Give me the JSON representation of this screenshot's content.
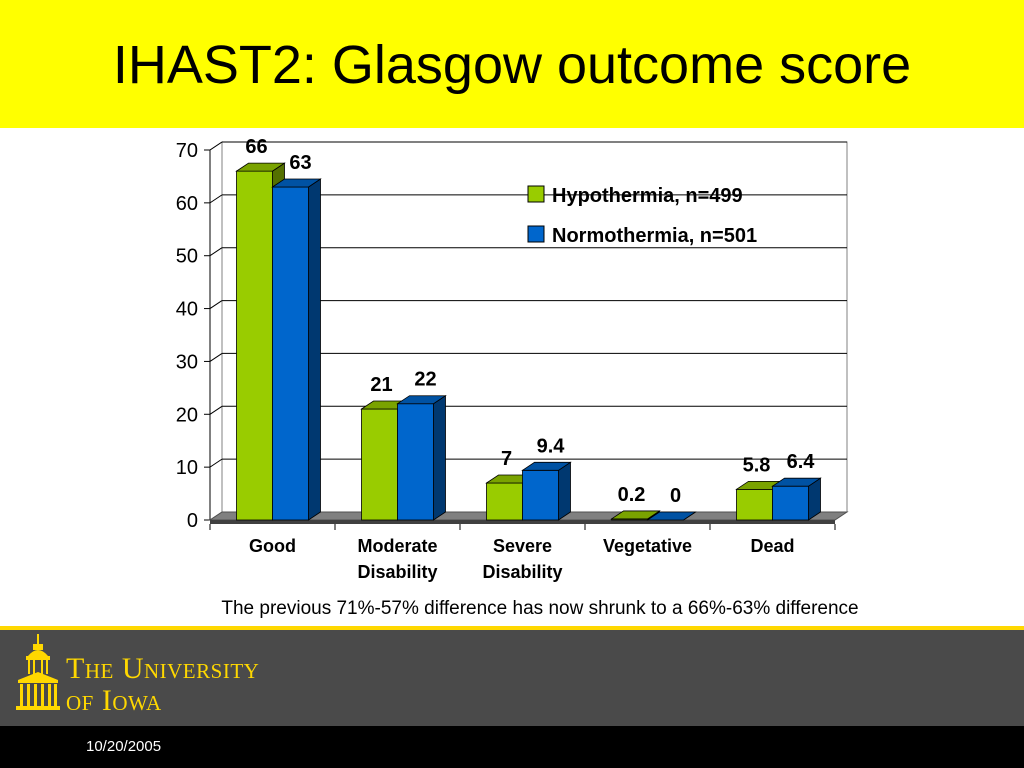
{
  "slide": {
    "title": "IHAST2: Glasgow outcome score",
    "caption": "The previous 71%-57% difference has now shrunk to a 66%-63% difference",
    "footer_org_line1": "The University",
    "footer_org_line2": "of Iowa",
    "date": "10/20/2005"
  },
  "colors": {
    "title_bar": "#ffff00",
    "hypothermia": "#99cc00",
    "normothermia": "#0066cc",
    "footer": "#4a4a4a",
    "logo": "#ffd800"
  },
  "chart_data": {
    "type": "bar",
    "title": "",
    "xlabel": "",
    "ylabel": "",
    "categories": [
      [
        "Good"
      ],
      [
        "Moderate",
        "Disability"
      ],
      [
        "Severe",
        "Disability"
      ],
      [
        "Vegetative"
      ],
      [
        "Dead"
      ]
    ],
    "series": [
      {
        "name": "Hypothermia, n=499",
        "values": [
          66,
          21,
          7,
          0.2,
          5.8
        ],
        "labels": [
          "66",
          "21",
          "7",
          "0.2",
          "5.8"
        ],
        "color": "#99cc00"
      },
      {
        "name": "Normothermia, n=501",
        "values": [
          63,
          22,
          9.4,
          0,
          6.4
        ],
        "labels": [
          "63",
          "22",
          "9.4",
          "0",
          "6.4"
        ],
        "color": "#0066cc"
      }
    ],
    "ylim": [
      0,
      70
    ],
    "yticks": [
      0,
      10,
      20,
      30,
      40,
      50,
      60,
      70
    ],
    "grid": true,
    "legend": "top-right",
    "style": "3d-clustered-bar"
  }
}
